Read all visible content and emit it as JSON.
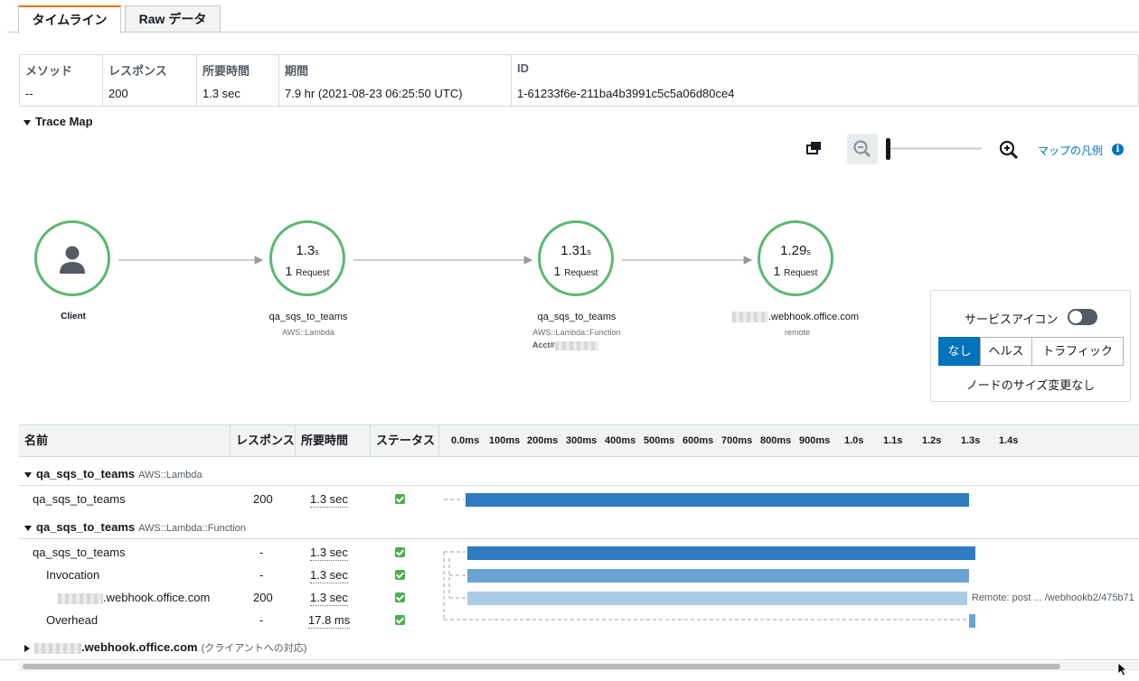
{
  "tabs": {
    "timeline": "タイムライン",
    "raw": "Raw データ"
  },
  "summary": {
    "headers": [
      "メソッド",
      "レスポンス",
      "所要時間",
      "期間",
      "ID"
    ],
    "values": [
      "--",
      "200",
      "1.3 sec",
      "7.9 hr (2021-08-23 06:25:50 UTC)",
      "1-61233f6e-211ba4b3991c5c5a06d80ce4"
    ]
  },
  "trace_map": {
    "title": "Trace Map",
    "legend_link": "マップの凡例",
    "nodes": [
      {
        "label": "Client",
        "sub": "",
        "time": "",
        "unit": "",
        "count": "",
        "count_label": ""
      },
      {
        "label": "qa_sqs_to_teams",
        "sub": "AWS::Lambda",
        "time": "1.3",
        "unit": "s",
        "count": "1",
        "count_label": "Request"
      },
      {
        "label": "qa_sqs_to_teams",
        "sub": "AWS::Lambda::Function",
        "extra": "Acct#",
        "time": "1.31",
        "unit": "s",
        "count": "1",
        "count_label": "Request"
      },
      {
        "label": ".webhook.office.com",
        "sub": "remote",
        "time": "1.29",
        "unit": "s",
        "count": "1",
        "count_label": "Request"
      }
    ],
    "options": {
      "service_icon_label": "サービスアイコン",
      "service_icon_on": false,
      "segments": [
        "なし",
        "ヘルス",
        "トラフィック"
      ],
      "selected_segment": "なし",
      "resize_label": "ノードのサイズ変更なし"
    }
  },
  "timeline": {
    "headers": [
      "名前",
      "レスポンス",
      "所要時間",
      "ステータス"
    ],
    "ticks": [
      "0.0ms",
      "100ms",
      "200ms",
      "300ms",
      "400ms",
      "500ms",
      "600ms",
      "700ms",
      "800ms",
      "900ms",
      "1.0s",
      "1.1s",
      "1.2s",
      "1.3s",
      "1.4s"
    ],
    "groups": [
      {
        "name": "qa_sqs_to_teams",
        "type": "AWS::Lambda"
      },
      {
        "name": "qa_sqs_to_teams",
        "type": "AWS::Lambda::Function"
      },
      {
        "name": ".webhook.office.com",
        "type": "(クライアントへの対応)"
      }
    ],
    "rows": [
      {
        "name": "qa_sqs_to_teams",
        "response": "200",
        "duration": "1.3 sec",
        "status": "ok"
      },
      {
        "name": "qa_sqs_to_teams",
        "response": "-",
        "duration": "1.3 sec",
        "status": "ok"
      },
      {
        "name": "Invocation",
        "response": "-",
        "duration": "1.3 sec",
        "status": "ok"
      },
      {
        "name": ".webhook.office.com",
        "response": "200",
        "duration": "1.3 sec",
        "status": "ok",
        "note": "Remote: post ... /webhookb2/475b71"
      },
      {
        "name": "Overhead",
        "response": "-",
        "duration": "17.8 ms",
        "status": "ok"
      }
    ]
  },
  "colors": {
    "accent": "#0073bb",
    "bar_dark": "#2e7bbf",
    "bar_mid": "#6aa3d3",
    "bar_light": "#a9cbe6",
    "node_ring": "#5cb870",
    "tab_accent": "#ec7211"
  }
}
